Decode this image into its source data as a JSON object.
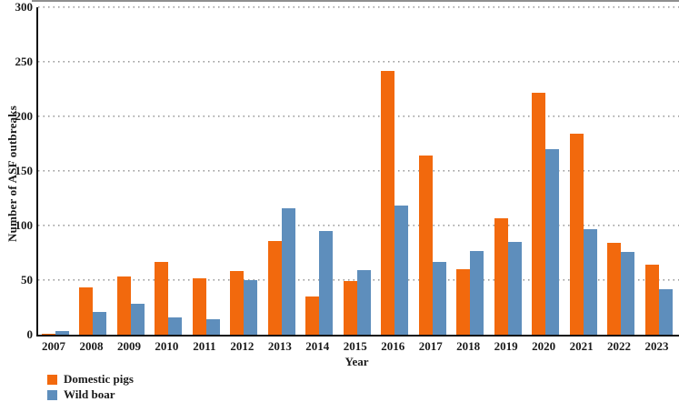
{
  "chart_data": {
    "type": "bar",
    "title": "",
    "xlabel": "Year",
    "ylabel": "Number of ASF outbreaks",
    "ylim": [
      0,
      300
    ],
    "yticks": [
      0,
      50,
      100,
      150,
      200,
      250,
      300
    ],
    "grid": "horizontal dotted",
    "legend_position": "bottom-left",
    "categories": [
      "2007",
      "2008",
      "2009",
      "2010",
      "2011",
      "2012",
      "2013",
      "2014",
      "2015",
      "2016",
      "2017",
      "2018",
      "2019",
      "2020",
      "2021",
      "2022",
      "2023"
    ],
    "series": [
      {
        "name": "Domestic pigs",
        "color": "#F2690D",
        "values": [
          1,
          43,
          53,
          67,
          52,
          58,
          86,
          35,
          49,
          242,
          164,
          60,
          107,
          222,
          184,
          84,
          64
        ]
      },
      {
        "name": "Wild boar",
        "color": "#5E8EBC",
        "values": [
          3,
          21,
          28,
          16,
          14,
          50,
          116,
          95,
          59,
          118,
          67,
          77,
          85,
          170,
          97,
          76,
          42
        ]
      }
    ]
  },
  "colors": {
    "axis": "#111111",
    "gridline": "#9a9a9a",
    "background": "#ffffff",
    "top_strip": "#8e8e8e"
  }
}
